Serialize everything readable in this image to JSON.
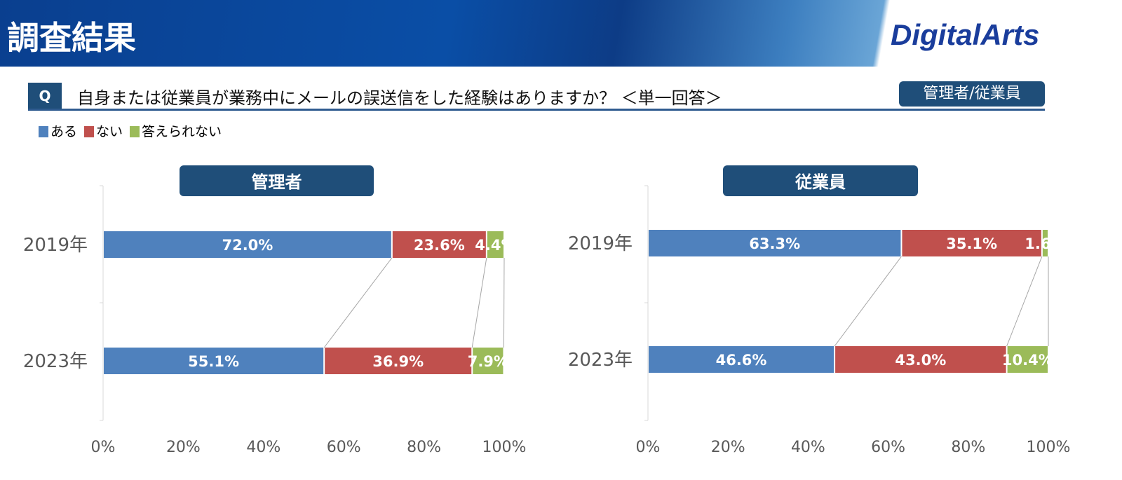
{
  "header": {
    "title": "調査結果",
    "logo": "DigitalArts"
  },
  "question": {
    "label": "Q",
    "text": "自身または従業員が業務中にメールの誤送信をした経験はありますか？ ＜単一回答＞",
    "respondents": "管理者/従業員"
  },
  "colors": {
    "ある": "#4f81bd",
    "ない": "#c0504d",
    "答えられない": "#9bbb59"
  },
  "chart_data": [
    {
      "type": "bar",
      "stacked": "percent",
      "orientation": "horizontal",
      "title": "管理者",
      "categories": [
        "2019年",
        "2023年"
      ],
      "series": [
        {
          "name": "ある",
          "values": [
            72.0,
            55.1
          ]
        },
        {
          "name": "ない",
          "values": [
            23.6,
            36.9
          ]
        },
        {
          "name": "答えられない",
          "values": [
            4.4,
            7.9
          ]
        }
      ],
      "xticks": [
        "0%",
        "20%",
        "40%",
        "60%",
        "80%",
        "100%"
      ],
      "xlim": [
        0,
        100
      ],
      "legend": "top-left"
    },
    {
      "type": "bar",
      "stacked": "percent",
      "orientation": "horizontal",
      "title": "従業員",
      "categories": [
        "2019年",
        "2023年"
      ],
      "series": [
        {
          "name": "ある",
          "values": [
            63.3,
            46.6
          ]
        },
        {
          "name": "ない",
          "values": [
            35.1,
            43.0
          ]
        },
        {
          "name": "答えられない",
          "values": [
            1.6,
            10.4
          ]
        }
      ],
      "xticks": [
        "0%",
        "20%",
        "40%",
        "60%",
        "80%",
        "100%"
      ],
      "xlim": [
        0,
        100
      ],
      "legend": "top-left"
    }
  ]
}
